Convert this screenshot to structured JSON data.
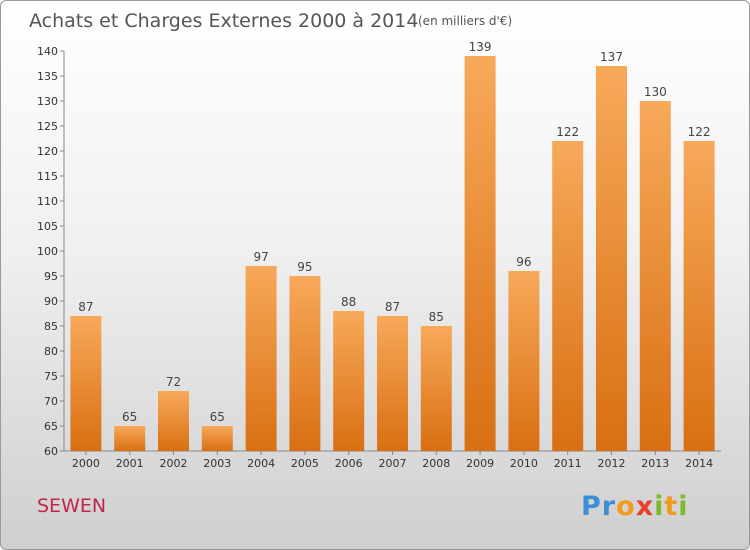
{
  "header": {
    "title": "Achats et Charges Externes 2000 à 2014",
    "unit": "(en milliers d'€)"
  },
  "footer": {
    "commune": "SEWEN",
    "brand_letters": [
      {
        "ch": "P",
        "color": "#3b8fd6"
      },
      {
        "ch": "r",
        "color": "#3b8fd6"
      },
      {
        "ch": "o",
        "color": "#f29a1a"
      },
      {
        "ch": "x",
        "color": "#e8402d"
      },
      {
        "ch": "i",
        "color": "#7cbb2a"
      },
      {
        "ch": "t",
        "color": "#f29a1a"
      },
      {
        "ch": "i",
        "color": "#7cbb2a"
      }
    ]
  },
  "chart_data": {
    "type": "bar",
    "title": "Achats et Charges Externes 2000 à 2014",
    "subtitle": "(en milliers d'€)",
    "categories": [
      "2000",
      "2001",
      "2002",
      "2003",
      "2004",
      "2005",
      "2006",
      "2007",
      "2008",
      "2009",
      "2010",
      "2011",
      "2012",
      "2013",
      "2014"
    ],
    "values": [
      87,
      65,
      72,
      65,
      97,
      95,
      88,
      87,
      85,
      139,
      96,
      122,
      137,
      130,
      122
    ],
    "ylim": [
      60,
      140
    ],
    "yticks": [
      60,
      65,
      70,
      75,
      80,
      85,
      90,
      95,
      100,
      105,
      110,
      115,
      120,
      125,
      130,
      135,
      140
    ],
    "grid": false,
    "bar_color_top": "#f7a95a",
    "bar_color_bottom": "#d96f12"
  }
}
